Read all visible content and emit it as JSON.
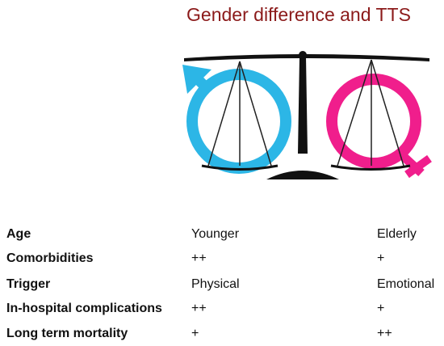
{
  "title": "Gender difference and TTS",
  "table": {
    "rows": [
      [
        "Age",
        "Younger",
        "Elderly"
      ],
      [
        "Comorbidities",
        "++",
        "+"
      ],
      [
        "Trigger",
        "Physical",
        "Emotional"
      ],
      [
        "In-hospital complications",
        "++",
        "+"
      ],
      [
        "Long term mortality",
        "+",
        "++"
      ]
    ]
  }
}
